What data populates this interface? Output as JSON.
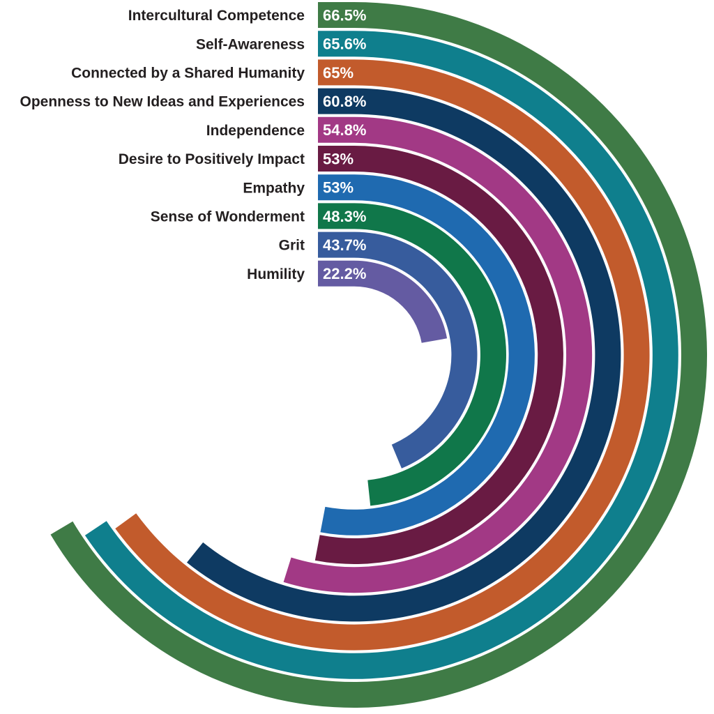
{
  "chart_data": {
    "type": "radial-bar",
    "title": "",
    "unit": "%",
    "direction": "clockwise",
    "start_position": "top",
    "angle_per_percent_deg": 3.6,
    "categories": [
      "Intercultural Competence",
      "Self-Awareness",
      "Connected by a Shared Humanity",
      "Openness to New Ideas and Experiences",
      "Independence",
      "Desire to Positively Impact",
      "Empathy",
      "Sense of Wonderment",
      "Grit",
      "Humility"
    ],
    "values": [
      66.5,
      65.6,
      65,
      60.8,
      54.8,
      53,
      53,
      48.3,
      43.7,
      22.2
    ],
    "value_labels": [
      "66.5%",
      "65.6%",
      "65%",
      "60.8%",
      "54.8%",
      "53%",
      "53%",
      "48.3%",
      "43.7%",
      "22.2%"
    ],
    "colors": [
      "#3F7B46",
      "#0F7F8D",
      "#C25B2C",
      "#0E3A62",
      "#A23985",
      "#691B43",
      "#1F6AB0",
      "#10774A",
      "#375C9D",
      "#645BA2"
    ],
    "label_color": "#231F20",
    "value_text_color": "#FFFFFF",
    "background": "#FFFFFF",
    "legend": "none",
    "grid": "off"
  }
}
